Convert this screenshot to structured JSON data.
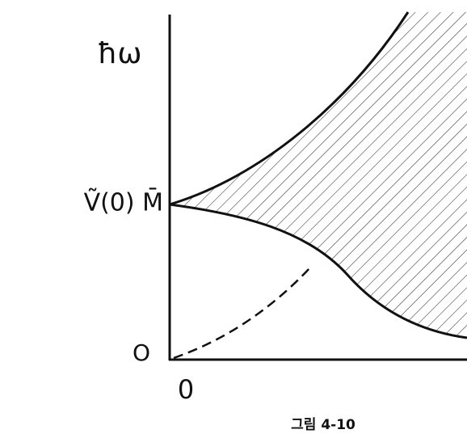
{
  "y_label": "ħω",
  "y_mark": "Ṽ(0) M̄",
  "y_origin": "O",
  "x_origin": "0",
  "caption": "그림 4-10"
}
